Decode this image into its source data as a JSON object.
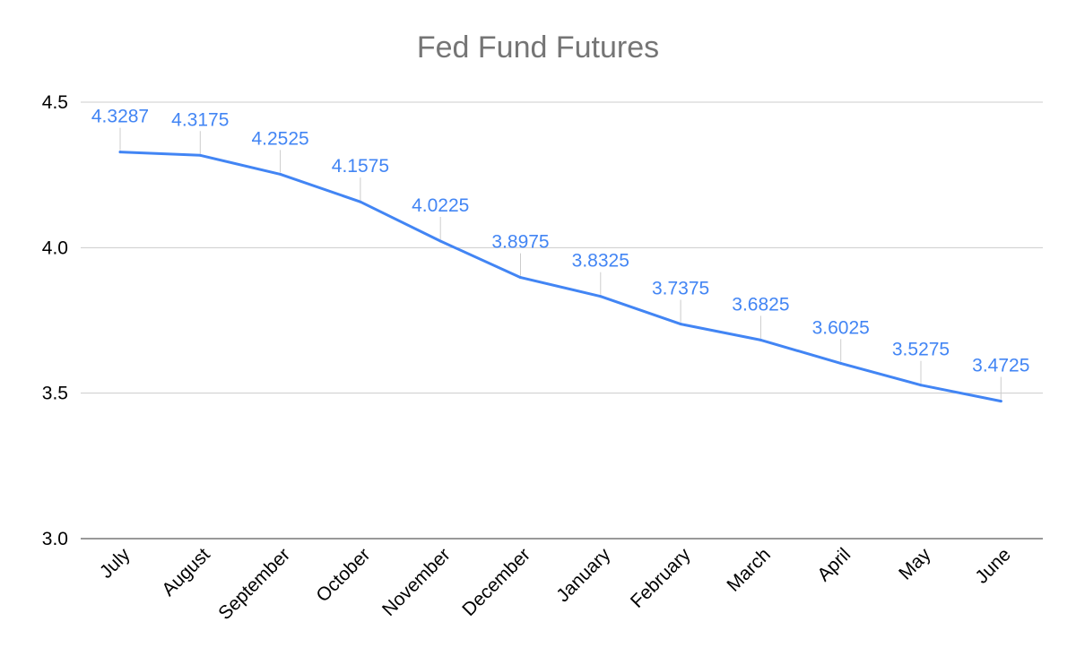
{
  "chart_data": {
    "type": "line",
    "title": "Fed Fund Futures",
    "xlabel": "",
    "ylabel": "",
    "categories": [
      "July",
      "August",
      "September",
      "October",
      "November",
      "December",
      "January",
      "February",
      "March",
      "April",
      "May",
      "June"
    ],
    "series": [
      {
        "values": [
          4.3287,
          4.3175,
          4.2525,
          4.1575,
          4.0225,
          3.8975,
          3.8325,
          3.7375,
          3.6825,
          3.6025,
          3.5275,
          3.4725
        ],
        "labels": [
          "4.3287",
          "4.3175",
          "4.2525",
          "4.1575",
          "4.0225",
          "3.8975",
          "3.8325",
          "3.7375",
          "3.6825",
          "3.6025",
          "3.5275",
          "3.4725"
        ]
      }
    ],
    "ylim": [
      3.0,
      4.5
    ],
    "yticks": [
      "3.0",
      "3.5",
      "4.0",
      "4.5"
    ],
    "grid": true,
    "legend": "none",
    "colors": {
      "line": "#4285f4",
      "label": "#4285f4",
      "grid": "#cccccc",
      "leader": "#cccccc",
      "title": "#757575"
    }
  }
}
